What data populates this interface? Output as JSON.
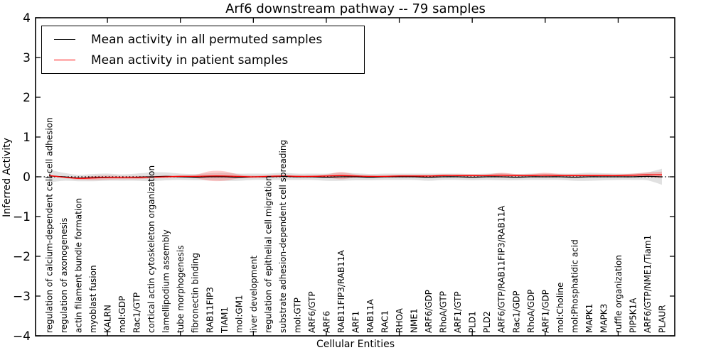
{
  "title": "Arf6 downstream pathway -- 79 samples",
  "legend": {
    "items": [
      {
        "label": "Mean activity in all permuted samples",
        "color": "#000000"
      },
      {
        "label": "Mean activity in patient samples",
        "color": "#ff0000"
      }
    ]
  },
  "axes": {
    "ylabel": "Inferred Activity",
    "xlabel": "Cellular Entities",
    "yticks": [
      "4",
      "3",
      "2",
      "1",
      "0",
      "−1",
      "−2",
      "−3",
      "−4"
    ]
  },
  "chart_data": {
    "type": "line",
    "title": "Arf6 downstream pathway -- 79 samples",
    "xlabel": "Cellular Entities",
    "ylabel": "Inferred Activity",
    "ylim": [
      -4,
      4
    ],
    "ytick_values": [
      4,
      3,
      2,
      1,
      0,
      -1,
      -2,
      -3,
      -4
    ],
    "x_tick_marks_every": 5,
    "grid": false,
    "legend_position": "upper left",
    "zero_line": {
      "style": "dotted",
      "color": "#000000",
      "y": 0
    },
    "categories": [
      "regulation of calcium-dependent cell-cell adhesion",
      "regulation of axonogenesis",
      "actin filament bundle formation",
      "myoblast fusion",
      "KALRN",
      "mol:GDP",
      "Rac1/GTP",
      "cortical actin cytoskeleton organization",
      "lamellipodium assembly",
      "tube morphogenesis",
      "fibronectin binding",
      "RAB11FIP3",
      "TIAM1",
      "mol:GM1",
      "liver development",
      "regulation of epithelial cell migration",
      "substrate adhesion-dependent cell spreading",
      "mol:GTP",
      "ARF6/GTP",
      "ARF6",
      "RAB11FIP3/RAB11A",
      "ARF1",
      "RAB11A",
      "RAC1",
      "RHOA",
      "NME1",
      "ARF6/GDP",
      "RhoA/GTP",
      "ARF1/GTP",
      "PLD1",
      "PLD2",
      "ARF6/GTP/RAB11FIP3/RAB11A",
      "Rac1/GDP",
      "RhoA/GDP",
      "ARF1/GDP",
      "mol:Choline",
      "mol:Phosphatidic acid",
      "MAPK1",
      "MAPK3",
      "ruffle organization",
      "PIP5K1A",
      "ARF6/GTP/NME1/Tiam1",
      "PLAUR"
    ],
    "series": [
      {
        "name": "Mean activity in all permuted samples",
        "color": "#000000",
        "band_color": "#bdbdbd",
        "values": [
          0.02,
          0.0,
          -0.03,
          -0.02,
          -0.01,
          -0.02,
          -0.01,
          0.0,
          0.01,
          0.0,
          -0.01,
          0.0,
          0.0,
          -0.01,
          0.0,
          0.0,
          0.01,
          0.0,
          0.0,
          -0.01,
          0.0,
          0.0,
          -0.01,
          0.0,
          0.0,
          0.0,
          -0.01,
          0.0,
          0.0,
          -0.01,
          0.0,
          0.0,
          -0.01,
          0.0,
          0.0,
          0.0,
          -0.01,
          0.0,
          0.0,
          0.0,
          0.0,
          0.01,
          0.0
        ],
        "band_halfwidth": [
          0.16,
          0.1,
          0.08,
          0.09,
          0.09,
          0.08,
          0.09,
          0.11,
          0.1,
          0.08,
          0.08,
          0.09,
          0.1,
          0.09,
          0.08,
          0.08,
          0.09,
          0.08,
          0.08,
          0.09,
          0.1,
          0.09,
          0.08,
          0.08,
          0.08,
          0.08,
          0.09,
          0.08,
          0.08,
          0.08,
          0.08,
          0.09,
          0.08,
          0.08,
          0.08,
          0.08,
          0.09,
          0.1,
          0.09,
          0.08,
          0.08,
          0.1,
          0.2
        ]
      },
      {
        "name": "Mean activity in patient samples",
        "color": "#ff0000",
        "band_color": "#ff3333",
        "values": [
          0.03,
          -0.01,
          -0.04,
          -0.03,
          -0.02,
          -0.02,
          -0.02,
          -0.01,
          0.0,
          0.01,
          0.01,
          0.02,
          0.02,
          0.01,
          0.0,
          0.01,
          0.02,
          0.01,
          0.01,
          0.02,
          0.03,
          0.02,
          0.01,
          0.01,
          0.02,
          0.02,
          0.02,
          0.03,
          0.03,
          0.03,
          0.03,
          0.04,
          0.03,
          0.03,
          0.04,
          0.03,
          0.03,
          0.03,
          0.03,
          0.03,
          0.04,
          0.05,
          0.05
        ],
        "band_halfwidth": [
          0.02,
          0.02,
          0.03,
          0.05,
          0.05,
          0.04,
          0.04,
          0.03,
          0.03,
          0.03,
          0.04,
          0.12,
          0.12,
          0.05,
          0.03,
          0.03,
          0.03,
          0.03,
          0.03,
          0.04,
          0.09,
          0.04,
          0.03,
          0.03,
          0.03,
          0.03,
          0.03,
          0.03,
          0.03,
          0.03,
          0.03,
          0.06,
          0.04,
          0.04,
          0.06,
          0.04,
          0.03,
          0.03,
          0.03,
          0.03,
          0.04,
          0.06,
          0.08
        ]
      }
    ]
  }
}
